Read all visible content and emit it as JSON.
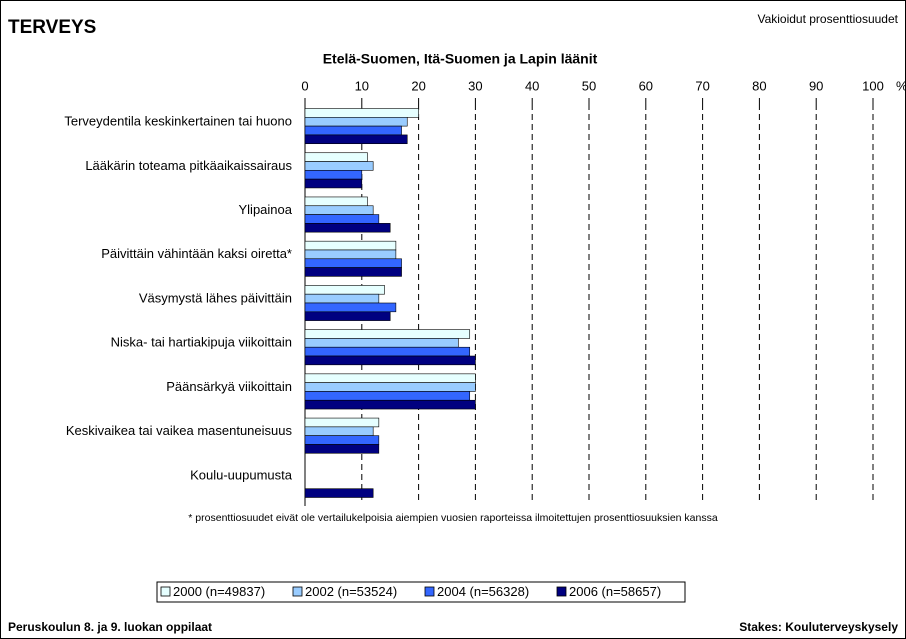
{
  "header": {
    "title": "TERVEYS",
    "note": "Vakioidut prosenttiosuudet"
  },
  "chart_data": {
    "type": "hbar",
    "title": "Etelä-Suomen, Itä-Suomen ja Lapin läänit",
    "x_label": "%",
    "categories": [
      "Terveydentila keskinkertainen tai huono",
      "Lääkärin toteama pitkäaikaissairaus",
      "Ylipainoa",
      "Päivittäin vähintään kaksi oiretta*",
      "Väsymystä lähes päivittäin",
      "Niska- tai hartiakipuja viikoittain",
      "Päänsärkyä viikoittain",
      "Keskivaikea tai vaikea masentuneisuus",
      "Koulu-uupumusta"
    ],
    "series": [
      {
        "name": "2000 (n=49837)",
        "color": "#e6ffff",
        "values": [
          20,
          11,
          11,
          16,
          14,
          29,
          30,
          13,
          null
        ]
      },
      {
        "name": "2002 (n=53524)",
        "color": "#99ccff",
        "values": [
          18,
          12,
          12,
          16,
          13,
          27,
          30,
          12,
          null
        ]
      },
      {
        "name": "2004 (n=56328)",
        "color": "#3366ff",
        "values": [
          17,
          10,
          13,
          17,
          16,
          29,
          29,
          13,
          null
        ]
      },
      {
        "name": "2006 (n=58657)",
        "color": "#000080",
        "values": [
          18,
          10,
          15,
          17,
          15,
          30,
          30,
          13,
          12
        ]
      }
    ],
    "xlim": [
      0,
      100
    ],
    "xticks": [
      0,
      10,
      20,
      30,
      40,
      50,
      60,
      70,
      80,
      90,
      100
    ],
    "grid": true,
    "legend": "bottom",
    "footnote": "* prosenttiosuudet eivät ole vertailukelpoisia aiempien vuosien raporteissa ilmoitettujen prosenttiosuuksien kanssa"
  },
  "footer": {
    "left": "Peruskoulun 8. ja 9. luokan oppilaat",
    "right": "Stakes: Kouluterveyskysely"
  }
}
